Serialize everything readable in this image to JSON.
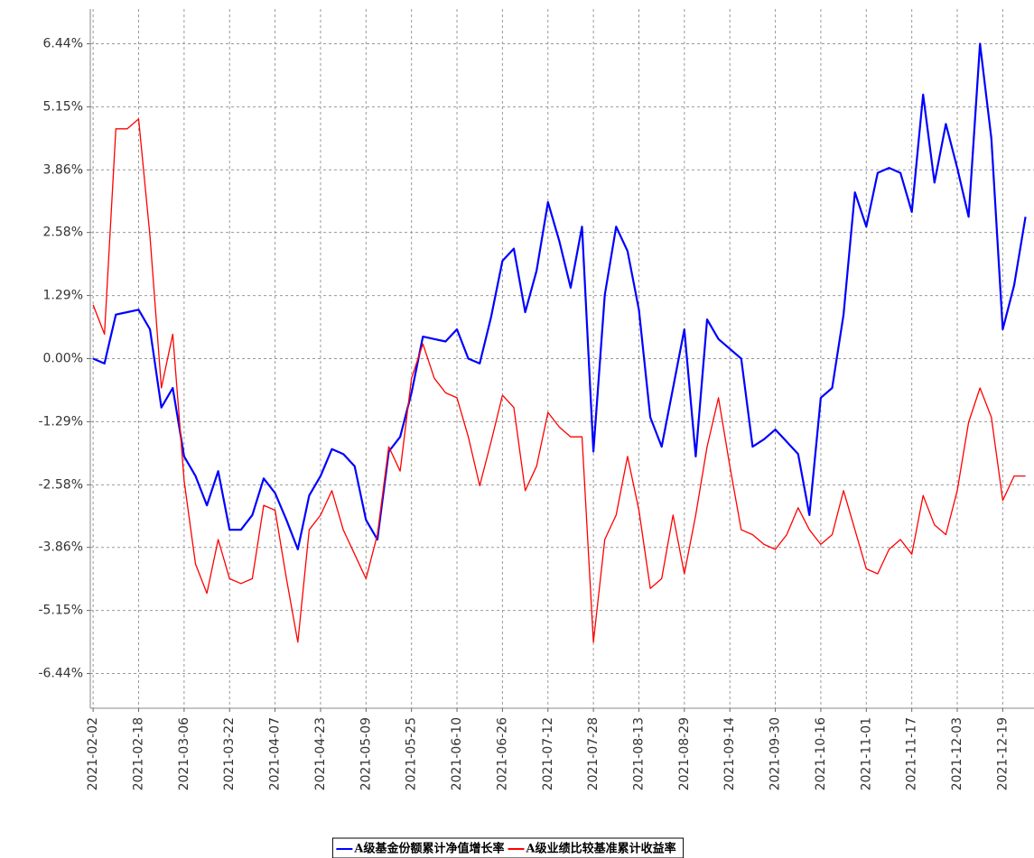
{
  "chart_data": {
    "type": "line",
    "x": [
      "2021-02-02",
      "2021-02-06",
      "2021-02-10",
      "2021-02-14",
      "2021-02-18",
      "2021-02-22",
      "2021-02-26",
      "2021-03-02",
      "2021-03-06",
      "2021-03-10",
      "2021-03-14",
      "2021-03-18",
      "2021-03-22",
      "2021-03-26",
      "2021-03-30",
      "2021-04-03",
      "2021-04-07",
      "2021-04-11",
      "2021-04-15",
      "2021-04-19",
      "2021-04-23",
      "2021-04-27",
      "2021-05-01",
      "2021-05-05",
      "2021-05-09",
      "2021-05-13",
      "2021-05-17",
      "2021-05-21",
      "2021-05-25",
      "2021-05-29",
      "2021-06-02",
      "2021-06-06",
      "2021-06-10",
      "2021-06-14",
      "2021-06-18",
      "2021-06-22",
      "2021-06-26",
      "2021-06-30",
      "2021-07-04",
      "2021-07-08",
      "2021-07-12",
      "2021-07-16",
      "2021-07-20",
      "2021-07-24",
      "2021-07-28",
      "2021-08-01",
      "2021-08-05",
      "2021-08-09",
      "2021-08-13",
      "2021-08-17",
      "2021-08-21",
      "2021-08-25",
      "2021-08-29",
      "2021-09-02",
      "2021-09-06",
      "2021-09-10",
      "2021-09-14",
      "2021-09-18",
      "2021-09-22",
      "2021-09-26",
      "2021-09-30",
      "2021-10-04",
      "2021-10-08",
      "2021-10-12",
      "2021-10-16",
      "2021-10-20",
      "2021-10-24",
      "2021-10-28",
      "2021-11-01",
      "2021-11-05",
      "2021-11-09",
      "2021-11-13",
      "2021-11-17",
      "2021-11-21",
      "2021-11-25",
      "2021-11-29",
      "2021-12-03",
      "2021-12-07",
      "2021-12-11",
      "2021-12-15",
      "2021-12-19",
      "2021-12-23",
      "2021-12-27"
    ],
    "series": [
      {
        "name": "A级基金份额累计净值增长率",
        "color": "#0000ff",
        "width": 2.2,
        "values": [
          0,
          -0.1,
          0.9,
          0.95,
          1.0,
          0.6,
          -1.0,
          -0.6,
          -2.0,
          -2.4,
          -3.0,
          -2.3,
          -3.5,
          -3.5,
          -3.2,
          -2.45,
          -2.75,
          -3.3,
          -3.9,
          -2.8,
          -2.4,
          -1.85,
          -1.95,
          -2.2,
          -3.3,
          -3.7,
          -1.9,
          -1.6,
          -0.7,
          0.45,
          0.4,
          0.35,
          0.6,
          0.0,
          -0.1,
          0.85,
          2.0,
          2.25,
          0.95,
          1.8,
          3.2,
          2.4,
          1.45,
          2.7,
          -1.9,
          1.3,
          2.7,
          2.2,
          1.0,
          -1.2,
          -1.8,
          -0.6,
          0.6,
          -2.0,
          0.8,
          0.4,
          0.2,
          0.0,
          -1.8,
          -1.65,
          -1.45,
          -1.7,
          -1.95,
          -3.2,
          -0.8,
          -0.6,
          0.9,
          3.4,
          2.7,
          3.8,
          3.9,
          3.8,
          3.0,
          5.4,
          3.6,
          4.8,
          3.9,
          2.9,
          6.44,
          4.5,
          0.6,
          1.5,
          2.9
        ]
      },
      {
        "name": "A级业绩比较基准累计收益率",
        "color": "#ff0000",
        "width": 1.3,
        "values": [
          1.1,
          0.5,
          4.7,
          4.7,
          4.9,
          2.5,
          -0.6,
          0.5,
          -2.5,
          -4.2,
          -4.8,
          -3.7,
          -4.5,
          -4.6,
          -4.5,
          -3.0,
          -3.1,
          -4.5,
          -5.8,
          -3.5,
          -3.2,
          -2.7,
          -3.5,
          -4.0,
          -4.5,
          -3.6,
          -1.8,
          -2.3,
          -0.4,
          0.3,
          -0.4,
          -0.7,
          -0.8,
          -1.6,
          -2.6,
          -1.7,
          -0.75,
          -1.0,
          -2.7,
          -2.2,
          -1.1,
          -1.4,
          -1.6,
          -1.6,
          -5.8,
          -3.7,
          -3.2,
          -2.0,
          -3.1,
          -4.7,
          -4.5,
          -3.2,
          -4.4,
          -3.2,
          -1.8,
          -0.8,
          -2.2,
          -3.5,
          -3.6,
          -3.8,
          -3.9,
          -3.6,
          -3.05,
          -3.5,
          -3.8,
          -3.6,
          -2.7,
          -3.5,
          -4.3,
          -4.4,
          -3.9,
          -3.7,
          -4.0,
          -2.8,
          -3.4,
          -3.6,
          -2.7,
          -1.3,
          -0.6,
          -1.2,
          -2.9,
          -2.4,
          -2.4
        ]
      }
    ],
    "xlim": [
      "2021-02-01",
      "2021-12-30"
    ],
    "xticks": [
      "2021-02-02",
      "2021-02-18",
      "2021-03-06",
      "2021-03-22",
      "2021-04-07",
      "2021-04-23",
      "2021-05-09",
      "2021-05-25",
      "2021-06-10",
      "2021-06-26",
      "2021-07-12",
      "2021-07-28",
      "2021-08-13",
      "2021-08-29",
      "2021-09-14",
      "2021-09-30",
      "2021-10-16",
      "2021-11-01",
      "2021-11-17",
      "2021-12-03",
      "2021-12-19"
    ],
    "ylim": [
      -7.15,
      7.15
    ],
    "yticks": [
      {
        "value": 6.44,
        "label": "6.44%"
      },
      {
        "value": 5.15,
        "label": "5.15%"
      },
      {
        "value": 3.86,
        "label": "3.86%"
      },
      {
        "value": 2.58,
        "label": "2.58%"
      },
      {
        "value": 1.29,
        "label": "1.29%"
      },
      {
        "value": 0,
        "label": "0.00%"
      },
      {
        "value": -1.29,
        "label": "-1.29%"
      },
      {
        "value": -2.58,
        "label": "-2.58%"
      },
      {
        "value": -3.86,
        "label": "-3.86%"
      },
      {
        "value": -5.15,
        "label": "-5.15%"
      },
      {
        "value": -6.44,
        "label": "-6.44%"
      }
    ],
    "grid": true,
    "legend": "bottom"
  }
}
